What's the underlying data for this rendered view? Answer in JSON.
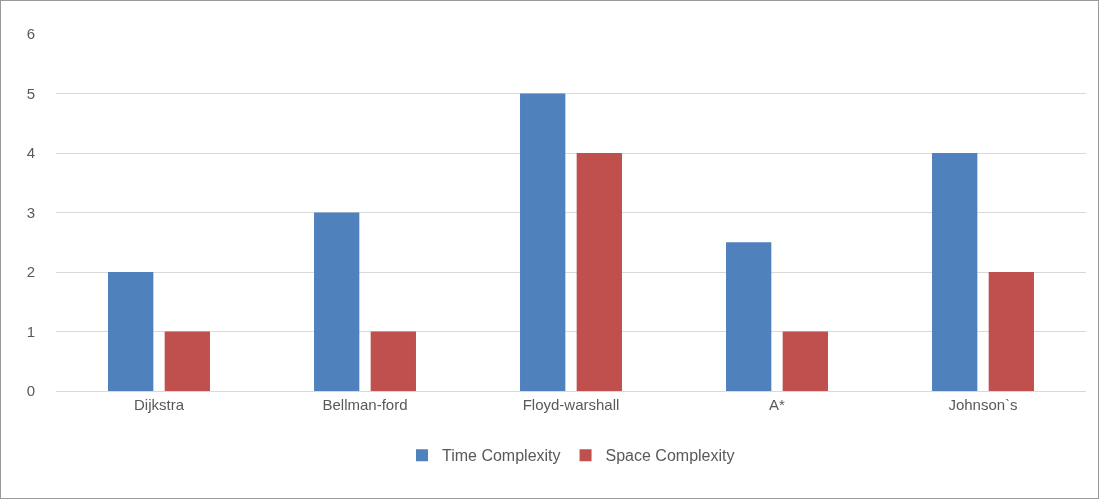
{
  "chart_data": {
    "type": "bar",
    "categories": [
      "Dijkstra",
      "Bellman-ford",
      "Floyd-warshall",
      "A*",
      "Johnson`s"
    ],
    "series": [
      {
        "name": "Time Complexity",
        "color": "#4f81bd",
        "values": [
          2,
          3,
          5,
          2.5,
          4
        ]
      },
      {
        "name": "Space Complexity",
        "color": "#c0504d",
        "values": [
          1,
          1,
          4,
          1,
          2
        ]
      }
    ],
    "ylim": [
      0,
      6
    ],
    "yticks": [
      0,
      1,
      2,
      3,
      4,
      5,
      6
    ],
    "grid": "y",
    "legend": "bottom"
  }
}
